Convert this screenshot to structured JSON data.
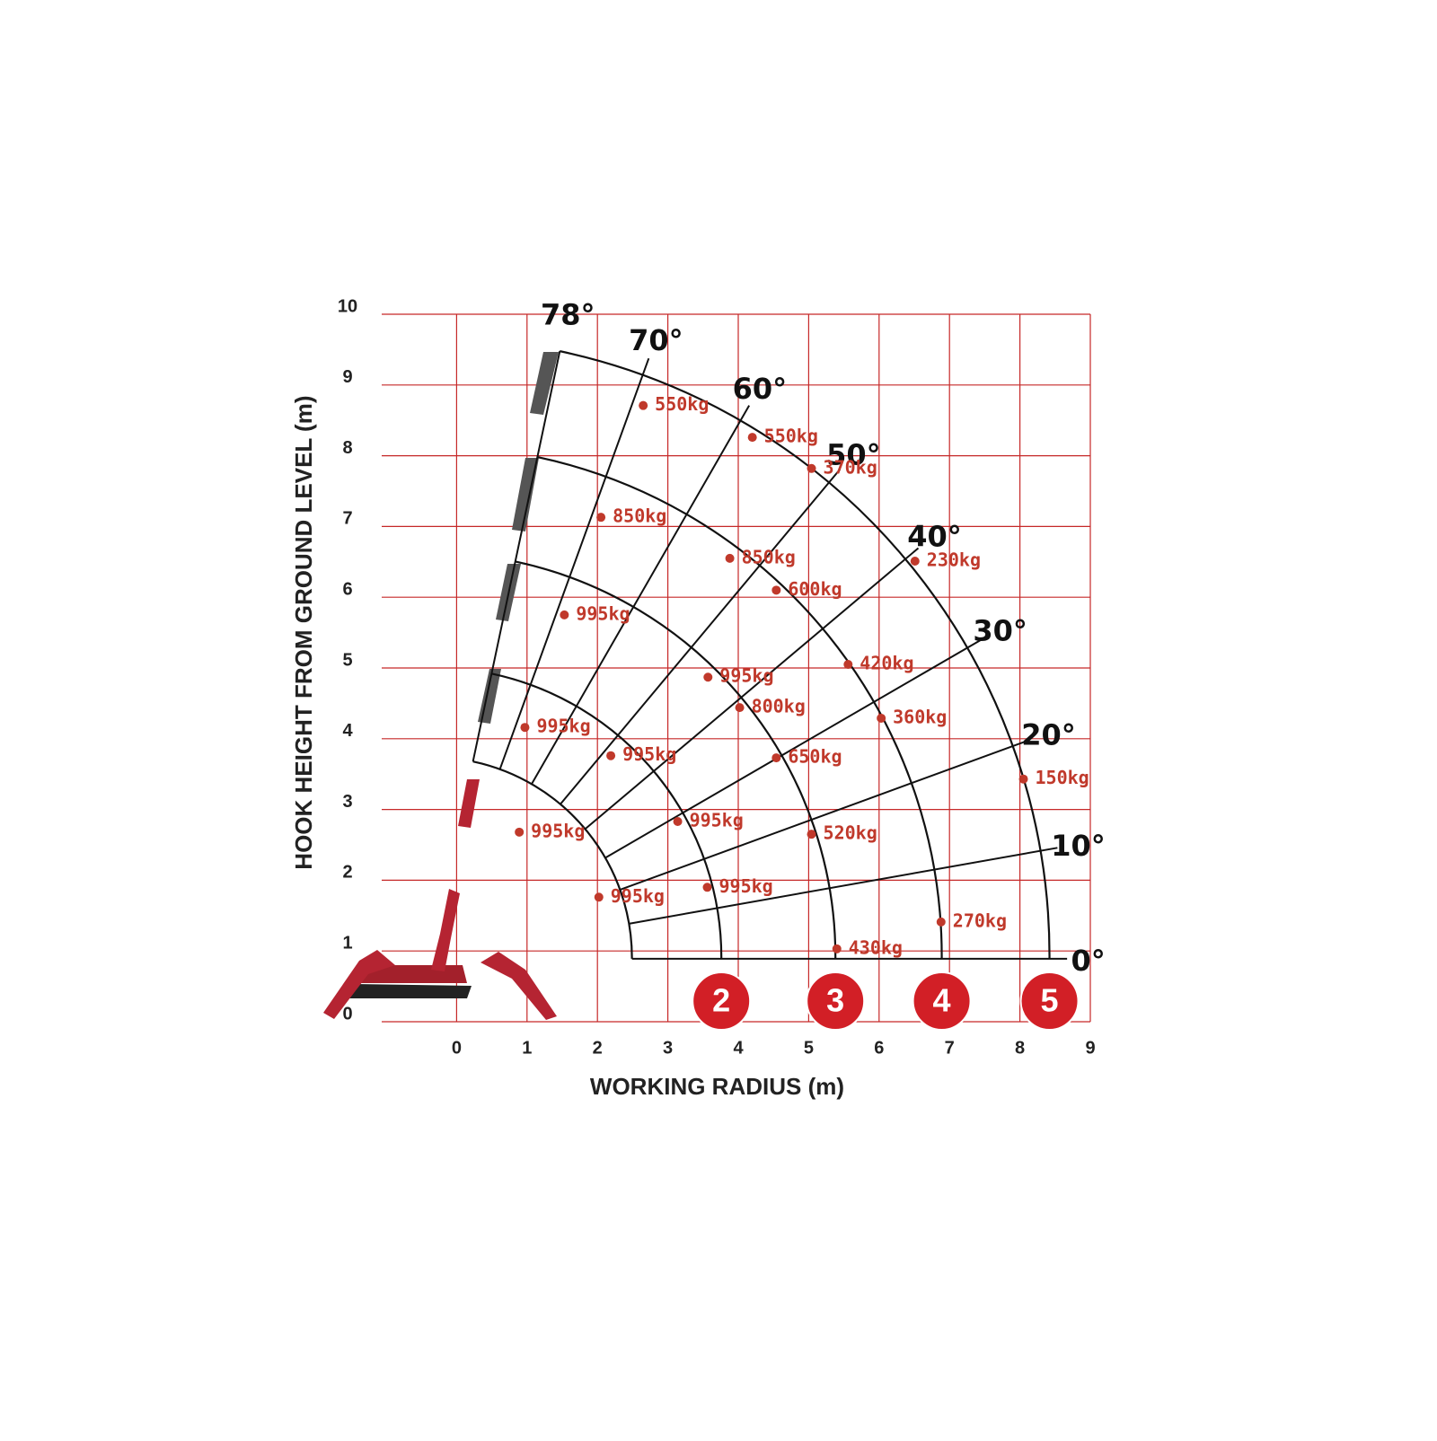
{
  "chart_data": {
    "type": "scatter",
    "xlabel": "WORKING RADIUS (m)",
    "ylabel": "HOOK HEIGHT FROM GROUND LEVEL (m)",
    "xlim": [
      -1,
      9
    ],
    "ylim": [
      0,
      10
    ],
    "xticks": [
      0,
      1,
      2,
      3,
      4,
      5,
      6,
      7,
      8,
      9
    ],
    "yticks": [
      0,
      1,
      2,
      3,
      4,
      5,
      6,
      7,
      8,
      9,
      10
    ],
    "grid": true,
    "grid_color": "#c62828",
    "point_color": "#c0392b",
    "angles": [
      {
        "value": 78,
        "label": "78°"
      },
      {
        "value": 70,
        "label": "70°"
      },
      {
        "value": 60,
        "label": "60°"
      },
      {
        "value": 50,
        "label": "50°"
      },
      {
        "value": 40,
        "label": "40°"
      },
      {
        "value": 30,
        "label": "30°"
      },
      {
        "value": 20,
        "label": "20°"
      },
      {
        "value": 10,
        "label": "10°"
      },
      {
        "value": 0,
        "label": "0°"
      }
    ],
    "booms": {
      "labels": [
        null,
        "2",
        "3",
        "4",
        "5"
      ],
      "reach": [
        2.49,
        3.76,
        5.38,
        6.89,
        8.42
      ]
    },
    "points": {
      "x": [
        2.65,
        4.2,
        5.04,
        2.05,
        3.88,
        6.51,
        4.54,
        1.53,
        5.56,
        3.57,
        4.02,
        6.03,
        0.97,
        2.19,
        4.54,
        8.05,
        3.14,
        0.89,
        5.04,
        2.02,
        3.56,
        6.88,
        5.4
      ],
      "y": [
        8.71,
        8.26,
        7.82,
        7.13,
        6.55,
        6.51,
        6.1,
        5.75,
        5.05,
        4.87,
        4.44,
        4.29,
        4.16,
        3.76,
        3.73,
        3.43,
        2.83,
        2.68,
        2.65,
        1.76,
        1.9,
        1.41,
        1.03
      ],
      "value_labels": [
        "550kg",
        "550kg",
        "370kg",
        "850kg",
        "850kg",
        "230kg",
        "600kg",
        "995kg",
        "420kg",
        "995kg",
        "800kg",
        "360kg",
        "995kg",
        "995kg",
        "650kg",
        "150kg",
        "995kg",
        "995kg",
        "520kg",
        "995kg",
        "995kg",
        "270kg",
        "430kg"
      ]
    }
  }
}
